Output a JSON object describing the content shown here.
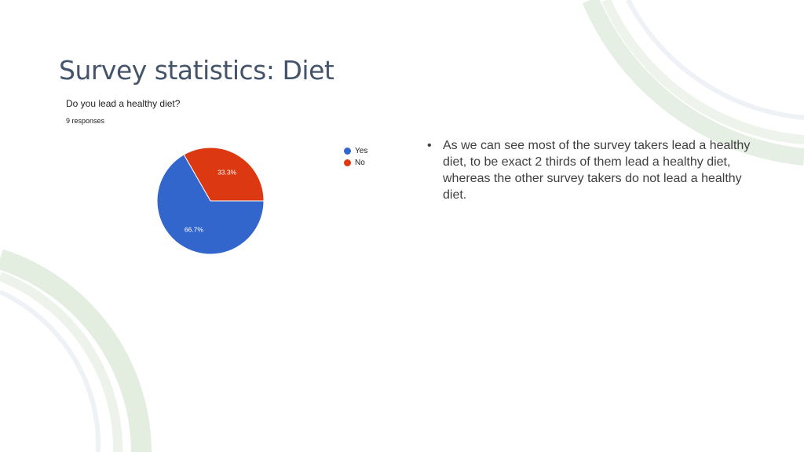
{
  "slide": {
    "title": "Survey statistics: Diet"
  },
  "chart_data": {
    "type": "pie",
    "title": "Do you lead a healthy diet?",
    "subtitle": "9 responses",
    "slices": [
      {
        "label": "Yes",
        "value": 66.7,
        "data_label": "66.7%",
        "color": "#3366cc"
      },
      {
        "label": "No",
        "value": 33.3,
        "data_label": "33.3%",
        "color": "#dc3912"
      }
    ],
    "legend_position": "right"
  },
  "bullets": [
    "As we can see most of the survey takers lead a healthy diet,  to be exact 2 thirds of them lead a healthy diet, whereas the other survey takers do not lead a healthy diet."
  ],
  "theme": {
    "title_color": "#44546a",
    "body_color": "#404040"
  }
}
